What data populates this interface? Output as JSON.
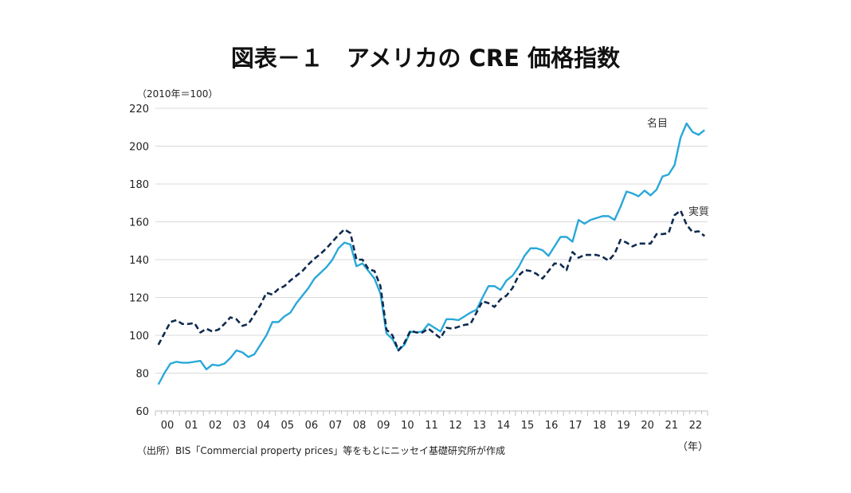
{
  "chart_data": {
    "type": "line",
    "title": "図表－１　アメリカの CRE 価格指数",
    "ylabel": "（2010年＝100）",
    "xlabel": "（年）",
    "source": "（出所）BIS「Commercial property prices」等をもとにニッセイ基礎研究所が作成",
    "ylim": [
      60,
      220
    ],
    "yticks": [
      60,
      80,
      100,
      120,
      140,
      160,
      180,
      200,
      220
    ],
    "xtick_labels": [
      "00",
      "01",
      "02",
      "03",
      "04",
      "05",
      "06",
      "07",
      "08",
      "09",
      "10",
      "11",
      "12",
      "13",
      "14",
      "15",
      "16",
      "17",
      "18",
      "19",
      "20",
      "21",
      "22"
    ],
    "grid": true,
    "frequency": "quarterly",
    "series": [
      {
        "name": "名目",
        "color": "#29A8D8",
        "style": "solid",
        "values": [
          74,
          80,
          85,
          86,
          85.5,
          85.5,
          86,
          86.5,
          82,
          84.5,
          84,
          85,
          88,
          92,
          91,
          88.5,
          90,
          95,
          100,
          107,
          107,
          110,
          112,
          117,
          121,
          125,
          130,
          133,
          136,
          140,
          146,
          149,
          148,
          136.5,
          138,
          134,
          130,
          122,
          101,
          98,
          92,
          95,
          102,
          101.5,
          102,
          106,
          104,
          102,
          108.5,
          108.5,
          108,
          110,
          112,
          113.5,
          120,
          126,
          126,
          124,
          129,
          131.5,
          136,
          142,
          146,
          146,
          145,
          142,
          147,
          152,
          152,
          149.5,
          161,
          159,
          161,
          162,
          163,
          163,
          161,
          168,
          176,
          175,
          173.5,
          176.5,
          174,
          177,
          184,
          185,
          190,
          204.5,
          212,
          207.5,
          206,
          208.5
        ]
      },
      {
        "name": "実質",
        "color": "#0F2A4F",
        "style": "dashed",
        "values": [
          95,
          101,
          107,
          108,
          106,
          106,
          106.5,
          101.5,
          103.5,
          102,
          103,
          106,
          109.5,
          108.5,
          105,
          106,
          111,
          116,
          122.5,
          121.5,
          124.5,
          126,
          129,
          131.5,
          134,
          137.5,
          140.5,
          143,
          146,
          149.5,
          153,
          156,
          154,
          140,
          140,
          135,
          134,
          126,
          103,
          100,
          92,
          96,
          102.5,
          101.5,
          101.5,
          103.5,
          101,
          98.5,
          104,
          103.5,
          104.5,
          105.5,
          106,
          112,
          118,
          117,
          115,
          119,
          121,
          125,
          131.5,
          134.5,
          134,
          132.5,
          130,
          134,
          138,
          137.5,
          134.5,
          144,
          141,
          142.5,
          142.5,
          142.5,
          141.5,
          139.5,
          143,
          150.5,
          149,
          147,
          148.5,
          148.5,
          148.5,
          153.5,
          153.5,
          154,
          163.5,
          166,
          158.5,
          154.5,
          155,
          152.5
        ]
      }
    ]
  }
}
